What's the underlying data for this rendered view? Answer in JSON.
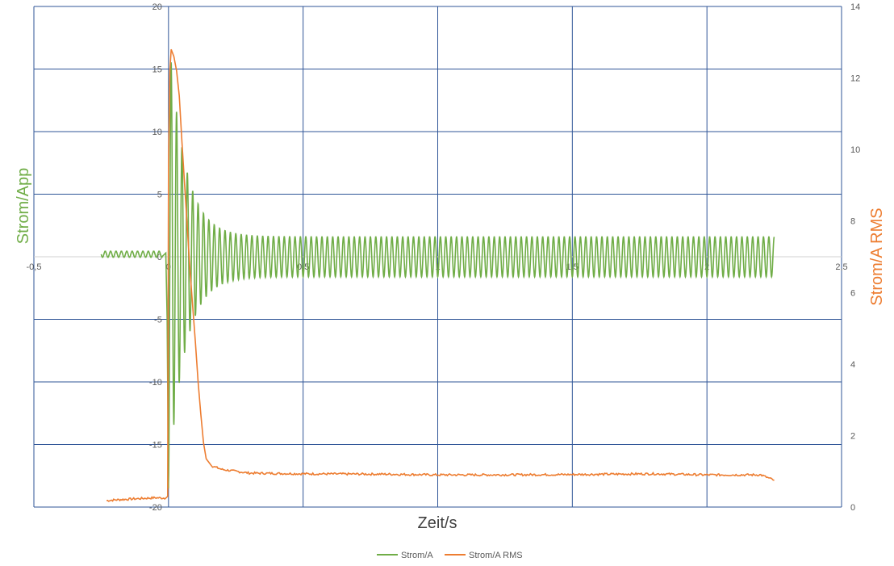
{
  "chart_data": {
    "type": "line",
    "xlabel": "Zeit/s",
    "ylabel": "Strom/App",
    "ylabel_right": "Strom/A RMS",
    "xlim": [
      -0.5,
      2.5
    ],
    "ylim": [
      -20,
      20
    ],
    "ylim_right": [
      0,
      14
    ],
    "x_ticks": [
      "-0,5",
      "0",
      "0,5",
      "1",
      "1,5",
      "2",
      "2,5"
    ],
    "y_ticks": [
      "-20",
      "-15",
      "-10",
      "-5",
      "0",
      "5",
      "10",
      "15",
      "20"
    ],
    "y_ticks_right": [
      "0",
      "2",
      "4",
      "6",
      "8",
      "10",
      "12",
      "14"
    ],
    "grid": true,
    "legend_position": "bottom",
    "series": [
      {
        "name": "Strom/A",
        "axis": "left",
        "color": "#70ad47",
        "segments": [
          {
            "x_start": -0.25,
            "x_end": -0.02,
            "frequency_hz": 50,
            "offset": 0.2,
            "amplitude": 0.25,
            "decay_time_s": null
          },
          {
            "x_start": -0.01,
            "x_end": 0.0,
            "points": [
              [
                -0.01,
                0.3
              ],
              [
                -0.005,
                -5
              ],
              [
                0.0,
                -18.5
              ]
            ]
          },
          {
            "x_start": 0.0,
            "x_end": 2.25,
            "frequency_hz": 50,
            "offset": 0.0,
            "amplitude": 1.6,
            "decay_amplitude": 16.5,
            "decay_time_s": 0.06
          }
        ],
        "peaks": {
          "max": 18.0,
          "min": -18.5
        }
      },
      {
        "name": "Strom/A RMS",
        "axis": "right",
        "color": "#ed7d31",
        "points": [
          [
            -0.23,
            0.18
          ],
          [
            -0.2,
            0.2
          ],
          [
            -0.15,
            0.22
          ],
          [
            -0.1,
            0.24
          ],
          [
            -0.05,
            0.26
          ],
          [
            -0.01,
            0.25
          ],
          [
            -0.003,
            0.3
          ],
          [
            0.0,
            9.5
          ],
          [
            0.005,
            12.2
          ],
          [
            0.01,
            12.8
          ],
          [
            0.02,
            12.6
          ],
          [
            0.03,
            12.2
          ],
          [
            0.04,
            11.5
          ],
          [
            0.05,
            10.2
          ],
          [
            0.06,
            9.0
          ],
          [
            0.07,
            7.8
          ],
          [
            0.08,
            6.6
          ],
          [
            0.09,
            5.6
          ],
          [
            0.1,
            4.6
          ],
          [
            0.11,
            3.5
          ],
          [
            0.12,
            2.6
          ],
          [
            0.13,
            1.8
          ],
          [
            0.14,
            1.35
          ],
          [
            0.16,
            1.15
          ],
          [
            0.2,
            1.05
          ],
          [
            0.3,
            0.95
          ],
          [
            0.5,
            0.93
          ],
          [
            0.8,
            0.92
          ],
          [
            1.0,
            0.9
          ],
          [
            1.2,
            0.9
          ],
          [
            1.5,
            0.91
          ],
          [
            1.8,
            0.93
          ],
          [
            2.0,
            0.9
          ],
          [
            2.2,
            0.9
          ],
          [
            2.25,
            0.75
          ]
        ]
      }
    ]
  }
}
